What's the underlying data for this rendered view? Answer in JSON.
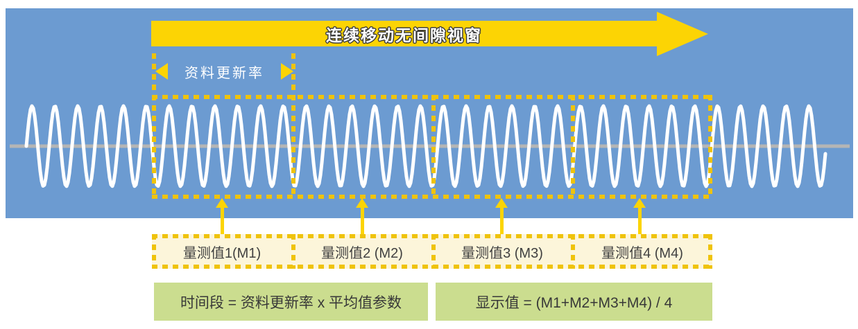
{
  "diagram": {
    "top_arrow_label": "连续移动无间隙视窗",
    "update_rate_label": "资料更新率",
    "measurements": [
      {
        "label": "量测值1(M1)"
      },
      {
        "label": "量测值2 (M2)"
      },
      {
        "label": "量测值3 (M3)"
      },
      {
        "label": "量测值4 (M4)"
      }
    ],
    "formulas": [
      {
        "text": "时间段 = 资料更新率 x 平均值参数"
      },
      {
        "text": "显示值 = (M1+M2+M3+M4) / 4"
      }
    ],
    "wave": {
      "cycles_visible": 35,
      "segments": 4
    },
    "colors": {
      "background_blue": "#6C9BD1",
      "arrow_yellow": "#FCD404",
      "dash_yellow": "#EFC30B",
      "wave_white": "#FFFFFF",
      "baseline_gray": "#B5B5B5",
      "label_box_cream": "#FCF5DA",
      "formula_box_green": "#CBDD8F",
      "text_dark": "#404040"
    }
  }
}
